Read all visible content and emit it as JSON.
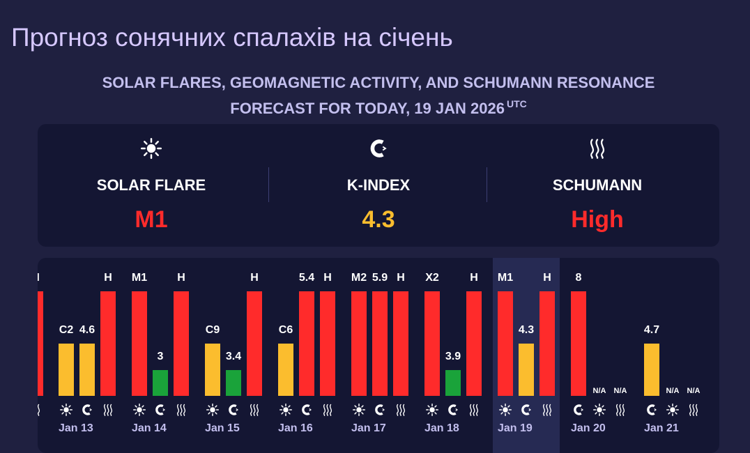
{
  "page": {
    "title": "Прогноз сонячних спалахів на січень"
  },
  "header": {
    "subtitle_line1": "SOLAR FLARES, GEOMAGNETIC ACTIVITY, AND SCHUMANN RESONANCE",
    "subtitle_line2": "FORECAST FOR TODAY, 19 JAN 2026",
    "subtitle_sup": "UTC"
  },
  "today": [
    {
      "label": "SOLAR FLARE",
      "value": "M1",
      "color": "#ff2b2b",
      "icon": "sun-icon"
    },
    {
      "label": "K-INDEX",
      "value": "4.3",
      "color": "#fbbd2e",
      "icon": "magnet-icon"
    },
    {
      "label": "SCHUMANN",
      "value": "High",
      "color": "#ff2b2b",
      "icon": "waves-icon"
    }
  ],
  "colors": {
    "red": "#ff2b2b",
    "yellow": "#fbbd2e",
    "green": "#1aa33a",
    "accent_text": "#c3bfee"
  },
  "chart_data": {
    "type": "bar",
    "highlighted_day": "Jan 19",
    "series_icons": [
      "sun-icon",
      "magnet-icon",
      "waves-icon"
    ],
    "days": [
      {
        "label": "",
        "bars": [
          {
            "value": "H",
            "level": 1.0,
            "color": "red",
            "icon": "waves-icon"
          }
        ]
      },
      {
        "label": "Jan 13",
        "bars": [
          {
            "value": "C2",
            "level": 0.5,
            "color": "yellow",
            "icon": "sun-icon"
          },
          {
            "value": "4.6",
            "level": 0.5,
            "color": "yellow",
            "icon": "magnet-icon"
          },
          {
            "value": "H",
            "level": 1.0,
            "color": "red",
            "icon": "waves-icon"
          }
        ]
      },
      {
        "label": "Jan 14",
        "bars": [
          {
            "value": "M1",
            "level": 1.0,
            "color": "red",
            "icon": "sun-icon"
          },
          {
            "value": "3",
            "level": 0.25,
            "color": "green",
            "icon": "magnet-icon"
          },
          {
            "value": "H",
            "level": 1.0,
            "color": "red",
            "icon": "waves-icon"
          }
        ]
      },
      {
        "label": "Jan 15",
        "bars": [
          {
            "value": "C9",
            "level": 0.5,
            "color": "yellow",
            "icon": "sun-icon"
          },
          {
            "value": "3.4",
            "level": 0.25,
            "color": "green",
            "icon": "magnet-icon"
          },
          {
            "value": "H",
            "level": 1.0,
            "color": "red",
            "icon": "waves-icon"
          }
        ]
      },
      {
        "label": "Jan 16",
        "bars": [
          {
            "value": "C6",
            "level": 0.5,
            "color": "yellow",
            "icon": "sun-icon"
          },
          {
            "value": "5.4",
            "level": 1.0,
            "color": "red",
            "icon": "magnet-icon"
          },
          {
            "value": "H",
            "level": 1.0,
            "color": "red",
            "icon": "waves-icon"
          }
        ]
      },
      {
        "label": "Jan 17",
        "bars": [
          {
            "value": "M2",
            "level": 1.0,
            "color": "red",
            "icon": "sun-icon"
          },
          {
            "value": "5.9",
            "level": 1.0,
            "color": "red",
            "icon": "magnet-icon"
          },
          {
            "value": "H",
            "level": 1.0,
            "color": "red",
            "icon": "waves-icon"
          }
        ]
      },
      {
        "label": "Jan 18",
        "bars": [
          {
            "value": "X2",
            "level": 1.0,
            "color": "red",
            "icon": "sun-icon"
          },
          {
            "value": "3.9",
            "level": 0.25,
            "color": "green",
            "icon": "magnet-icon"
          },
          {
            "value": "H",
            "level": 1.0,
            "color": "red",
            "icon": "waves-icon"
          }
        ]
      },
      {
        "label": "Jan 19",
        "bars": [
          {
            "value": "M1",
            "level": 1.0,
            "color": "red",
            "icon": "sun-icon"
          },
          {
            "value": "4.3",
            "level": 0.5,
            "color": "yellow",
            "icon": "magnet-icon"
          },
          {
            "value": "H",
            "level": 1.0,
            "color": "red",
            "icon": "waves-icon"
          }
        ]
      },
      {
        "label": "Jan 20",
        "bars": [
          {
            "value": "8",
            "level": 1.0,
            "color": "red",
            "icon": "magnet-icon"
          },
          {
            "value": "N/A",
            "level": 0,
            "color": "none",
            "icon": "sun-icon"
          },
          {
            "value": "N/A",
            "level": 0,
            "color": "none",
            "icon": "waves-icon"
          }
        ]
      },
      {
        "label": "Jan 21",
        "bars": [
          {
            "value": "4.7",
            "level": 0.5,
            "color": "yellow",
            "icon": "magnet-icon"
          },
          {
            "value": "N/A",
            "level": 0,
            "color": "none",
            "icon": "sun-icon"
          },
          {
            "value": "N/A",
            "level": 0,
            "color": "none",
            "icon": "waves-icon"
          }
        ]
      }
    ]
  }
}
